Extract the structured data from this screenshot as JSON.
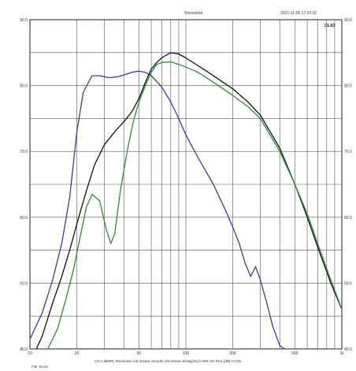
{
  "header": {
    "title": "Sinusoidal",
    "datetime": "2021-11-06 17:20:10",
    "logo": "CLIO"
  },
  "footer": {
    "settings": "CH A dBSPL Resolution 1/6 Octave Smooth 1/6 Octave Delay[ms] 0.000 Ovl Rms [dB] 0.0 Db",
    "file": "File: Br.sin"
  },
  "chart_data": {
    "type": "line",
    "x_scale": "log",
    "xlim": [
      10,
      1000
    ],
    "ylim": [
      40,
      90
    ],
    "x_ticks": [
      10,
      20,
      50,
      100,
      200,
      500,
      1000
    ],
    "x_tick_labels": [
      "10",
      "20",
      "50",
      "100",
      "200",
      "500",
      "1k"
    ],
    "y_ticks": [
      40,
      50,
      60,
      70,
      80,
      90
    ],
    "y_tick_labels_left": [
      "40.0",
      "50.0",
      "60.0",
      "70.0",
      "80.0",
      "90.0"
    ],
    "y_tick_labels_right": [
      "40.0",
      "50.0",
      "60.0",
      "70.0",
      "80.0",
      "90.0"
    ],
    "grid": true,
    "series": [
      {
        "color": "#3a3aa8",
        "x": [
          10,
          12,
          14,
          16,
          18,
          20,
          22,
          25,
          28,
          32,
          36,
          40,
          45,
          50,
          55,
          60,
          70,
          80,
          90,
          100,
          120,
          150,
          180,
          200,
          220,
          240,
          260,
          280,
          300,
          330,
          360,
          400,
          430
        ],
        "y": [
          41.5,
          45.5,
          50.5,
          56,
          63,
          73,
          79,
          81.5,
          81.5,
          81.2,
          81.3,
          81.6,
          82,
          82.2,
          82,
          81.5,
          79.8,
          77.5,
          75,
          72.5,
          69,
          65,
          61,
          58.5,
          56,
          53,
          51,
          52.5,
          50.5,
          47,
          43.5,
          40.5,
          38
        ]
      },
      {
        "color": "#111111",
        "x": [
          11,
          12,
          14,
          16,
          18,
          20,
          23,
          26,
          30,
          35,
          40,
          45,
          50,
          55,
          60,
          65,
          70,
          80,
          90,
          100,
          120,
          150,
          200,
          250,
          300,
          400,
          500,
          600,
          700,
          850,
          1000
        ],
        "y": [
          40,
          42,
          47,
          51,
          55,
          59,
          64,
          68,
          71,
          73,
          74.5,
          76,
          78,
          80.5,
          82.5,
          83.5,
          84.2,
          85,
          84.8,
          84.2,
          83,
          81.5,
          79.5,
          77.5,
          75.5,
          70.5,
          65,
          60,
          55.5,
          50,
          46
        ]
      },
      {
        "color": "#2e8b3a",
        "x": [
          13,
          15,
          17,
          19,
          21,
          23,
          25,
          28,
          31,
          33,
          35,
          38,
          42,
          46,
          50,
          55,
          60,
          65,
          70,
          80,
          90,
          100,
          120,
          150,
          200,
          250,
          300,
          400,
          500,
          600,
          700,
          850,
          1000
        ],
        "y": [
          40,
          43,
          47.5,
          52,
          57,
          61.5,
          63.5,
          62.5,
          58,
          56,
          57.5,
          64,
          70,
          74.5,
          77.5,
          80,
          82,
          83.2,
          83.5,
          83.6,
          83.2,
          82.8,
          82,
          80.5,
          78.5,
          76.8,
          75,
          70,
          65,
          60.5,
          56,
          50.5,
          46
        ]
      }
    ]
  }
}
